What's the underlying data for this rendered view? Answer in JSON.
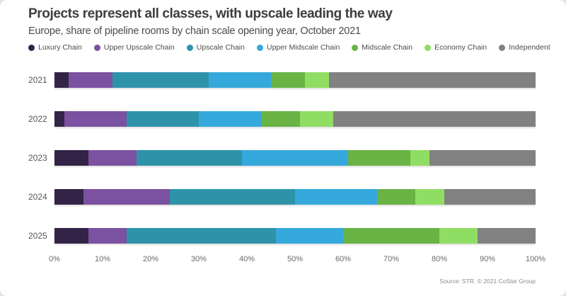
{
  "header": {
    "title": "Projects represent all classes, with upscale leading the way",
    "subtitle": "Europe, share of pipeline rooms by chain scale opening year, October 2021"
  },
  "source": "Source: STR. © 2021 CoStar Group",
  "chart_data": {
    "type": "bar",
    "orientation": "horizontal",
    "stacked": true,
    "unit": "percent",
    "title": "Projects represent all classes, with upscale leading the way",
    "subtitle": "Europe, share of pipeline rooms by chain scale opening year, October 2021",
    "categories": [
      "2021",
      "2022",
      "2023",
      "2024",
      "2025"
    ],
    "series": [
      {
        "name": "Luxury Chain",
        "color": "#332347",
        "values": [
          3,
          2,
          7,
          6,
          7
        ]
      },
      {
        "name": "Upper Upscale Chain",
        "color": "#7b51a1",
        "values": [
          9,
          13,
          10,
          18,
          8
        ]
      },
      {
        "name": "Upscale Chain",
        "color": "#2e93a9",
        "values": [
          20,
          15,
          22,
          26,
          31
        ]
      },
      {
        "name": "Upper Midscale Chain",
        "color": "#35a8dc",
        "values": [
          13,
          13,
          22,
          17,
          14
        ]
      },
      {
        "name": "Midscale Chain",
        "color": "#6ab345",
        "values": [
          7,
          8,
          13,
          8,
          20
        ]
      },
      {
        "name": "Economy Chain",
        "color": "#90dd63",
        "values": [
          5,
          7,
          4,
          6,
          8
        ]
      },
      {
        "name": "Independent",
        "color": "#818181",
        "values": [
          43,
          42,
          22,
          19,
          12
        ]
      }
    ],
    "x_ticks": [
      "0%",
      "10%",
      "20%",
      "30%",
      "40%",
      "50%",
      "60%",
      "70%",
      "80%",
      "90%",
      "100%"
    ],
    "xlim": [
      0,
      100
    ],
    "legend_position": "top",
    "grid": false
  }
}
